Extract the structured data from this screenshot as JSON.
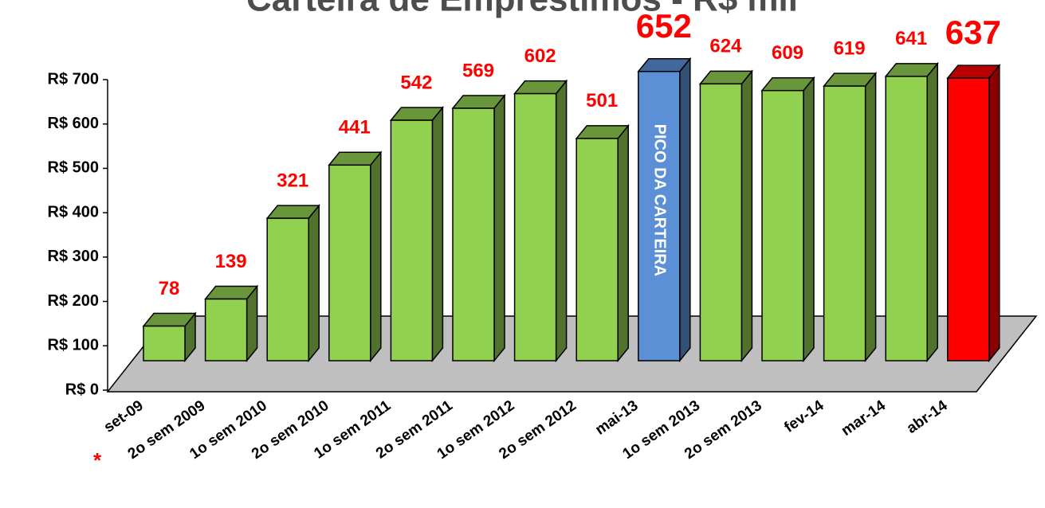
{
  "chart_data": {
    "type": "bar3d",
    "title": "Carteira de Empréstimos - R$ mil",
    "categories": [
      "set-09",
      "2o sem 2009",
      "1o sem 2010",
      "2o sem 2010",
      "1o sem 2011",
      "2o sem 2011",
      "1o sem 2012",
      "2o sem 2012",
      "mai-13",
      "1o sem 2013",
      "2o sem 2013",
      "fev-14",
      "mar-14",
      "abr-14"
    ],
    "values": [
      78,
      139,
      321,
      441,
      542,
      569,
      602,
      501,
      652,
      624,
      609,
      619,
      641,
      637
    ],
    "colors": [
      "#92d050",
      "#92d050",
      "#92d050",
      "#92d050",
      "#92d050",
      "#92d050",
      "#92d050",
      "#92d050",
      "#5b8fd6",
      "#92d050",
      "#92d050",
      "#92d050",
      "#92d050",
      "#ff0000"
    ],
    "ylim": [
      0,
      700
    ],
    "yticks": [
      {
        "value": 0,
        "label": "R$ 0"
      },
      {
        "value": 100,
        "label": "R$ 100"
      },
      {
        "value": 200,
        "label": "R$ 200"
      },
      {
        "value": 300,
        "label": "R$ 300"
      },
      {
        "value": 400,
        "label": "R$ 400"
      },
      {
        "value": 500,
        "label": "R$ 500"
      },
      {
        "value": 600,
        "label": "R$ 600"
      },
      {
        "value": 700,
        "label": "R$ 700"
      }
    ],
    "annotations": [
      "PICO DA CARTEIRA",
      "*"
    ]
  }
}
